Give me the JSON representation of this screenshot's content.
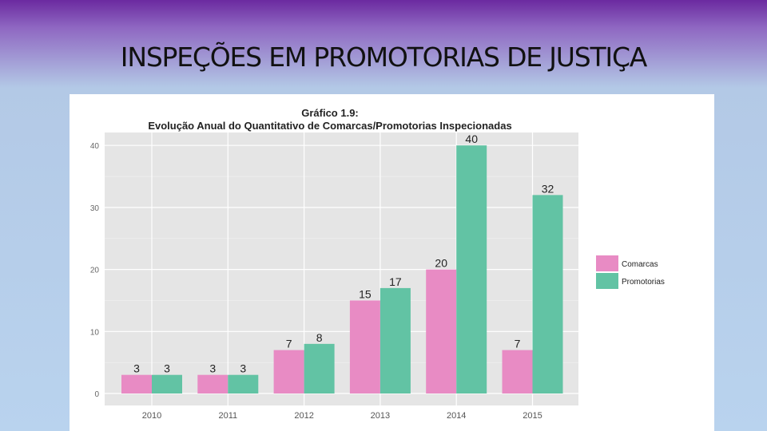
{
  "slide": {
    "title": "INSPEÇÕES EM PROMOTORIAS DE JUSTIÇA"
  },
  "colors": {
    "comarcas": "#e88bc4",
    "promotorias": "#62c3a4",
    "panel_bg": "#e5e5e5",
    "grid": "#ffffff"
  },
  "chart_data": {
    "type": "bar",
    "title": "Gráfico 1.9:",
    "subtitle": "Evolução Anual do Quantitativo de Comarcas/Promotorias Inspecionadas",
    "categories": [
      "2010",
      "2011",
      "2012",
      "2013",
      "2014",
      "2015"
    ],
    "series": [
      {
        "name": "Comarcas",
        "values": [
          3,
          3,
          7,
          15,
          20,
          7
        ]
      },
      {
        "name": "Promotorias",
        "values": [
          3,
          3,
          8,
          17,
          40,
          32
        ]
      }
    ],
    "yticks": [
      0,
      10,
      20,
      30,
      40
    ],
    "ylim": [
      0,
      41
    ],
    "xlabel": "",
    "ylabel": "",
    "grid": true,
    "legend_position": "right"
  }
}
